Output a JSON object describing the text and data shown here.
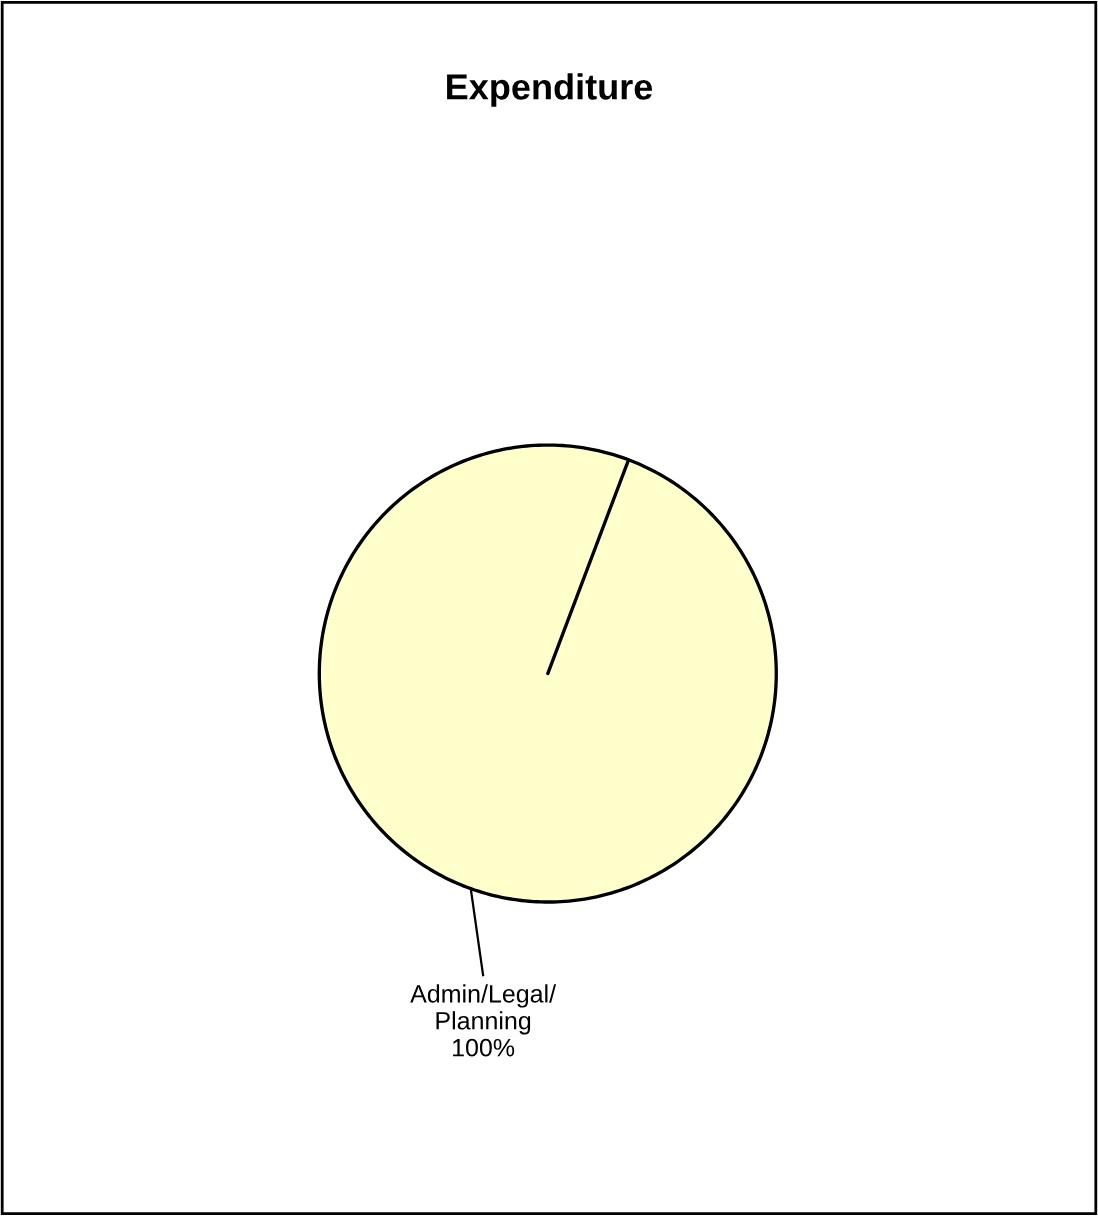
{
  "chart_data": {
    "type": "pie",
    "title": "Expenditure",
    "categories": [
      "Admin/Legal/\nPlanning"
    ],
    "values": [
      100
    ],
    "colors": [
      "#ffffcc"
    ],
    "value_labels": [
      "100%"
    ],
    "legend": false
  }
}
